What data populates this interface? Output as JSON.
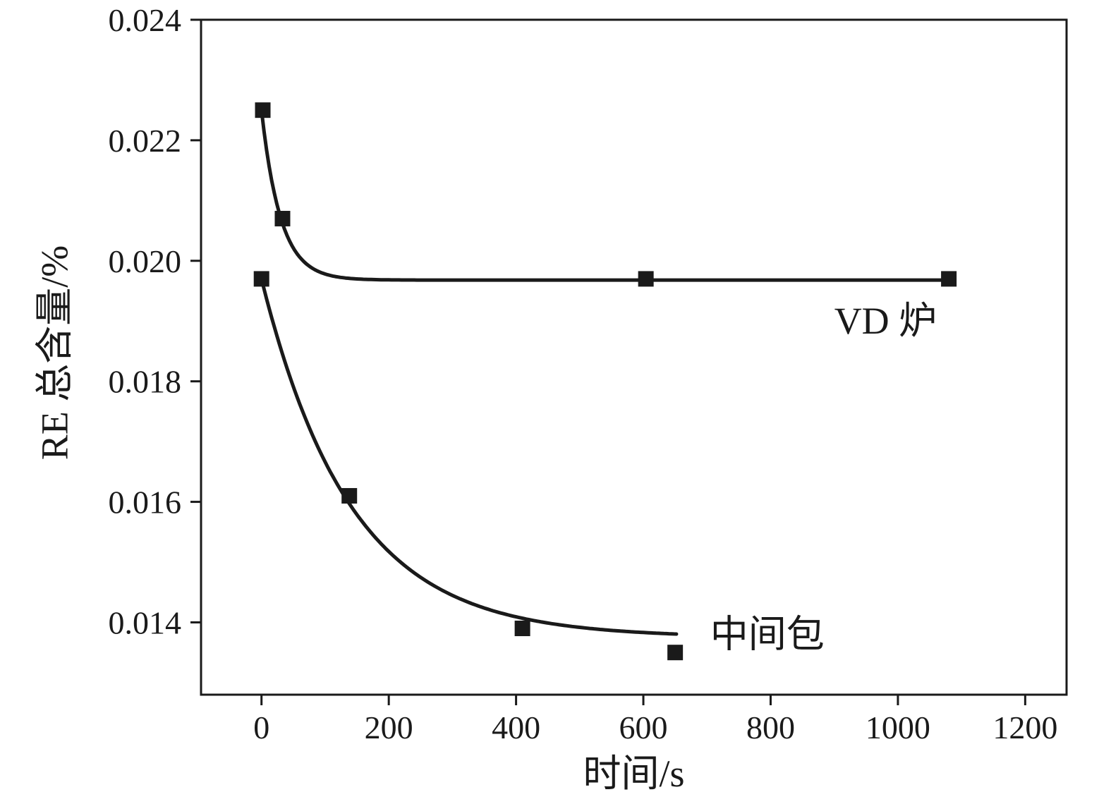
{
  "figure": {
    "background": "#ffffff",
    "ink_color": "#1a1a1a"
  },
  "chart_data": {
    "type": "scatter",
    "title": "",
    "xlabel": "时间/s",
    "ylabel": "RE 总含量/%",
    "xlim": [
      -95,
      1265
    ],
    "ylim": [
      0.0128,
      0.024
    ],
    "xticks": [
      0,
      200,
      400,
      600,
      800,
      1000,
      1200
    ],
    "yticks": [
      0.014,
      0.016,
      0.018,
      0.02,
      0.022,
      0.024
    ],
    "y_tick_decimals": 3,
    "grid": false,
    "legend_position": "inline-annotations",
    "series": [
      {
        "name": "VD 炉",
        "marker": "square",
        "points": [
          [
            2,
            0.0225
          ],
          [
            33,
            0.0207
          ],
          [
            604,
            0.0197
          ],
          [
            1080,
            0.0197
          ]
        ],
        "fit_curve": {
          "type": "exp-decay",
          "baseline": 0.01968,
          "amplitude": 0.00282,
          "tau": 30,
          "x_start": 0,
          "x_end": 1080
        },
        "label": "VD 炉",
        "label_anchor": [
          900,
          0.019
        ]
      },
      {
        "name": "中间包",
        "marker": "square",
        "points": [
          [
            0,
            0.0197
          ],
          [
            138,
            0.0161
          ],
          [
            410,
            0.0139
          ],
          [
            650,
            0.0135
          ]
        ],
        "fit_curve": {
          "type": "exp-decay",
          "baseline": 0.01375,
          "amplitude": 0.00595,
          "tau": 140,
          "x_start": 0,
          "x_end": 655
        },
        "label": "中间包",
        "label_anchor": [
          705,
          0.0138
        ]
      }
    ]
  }
}
